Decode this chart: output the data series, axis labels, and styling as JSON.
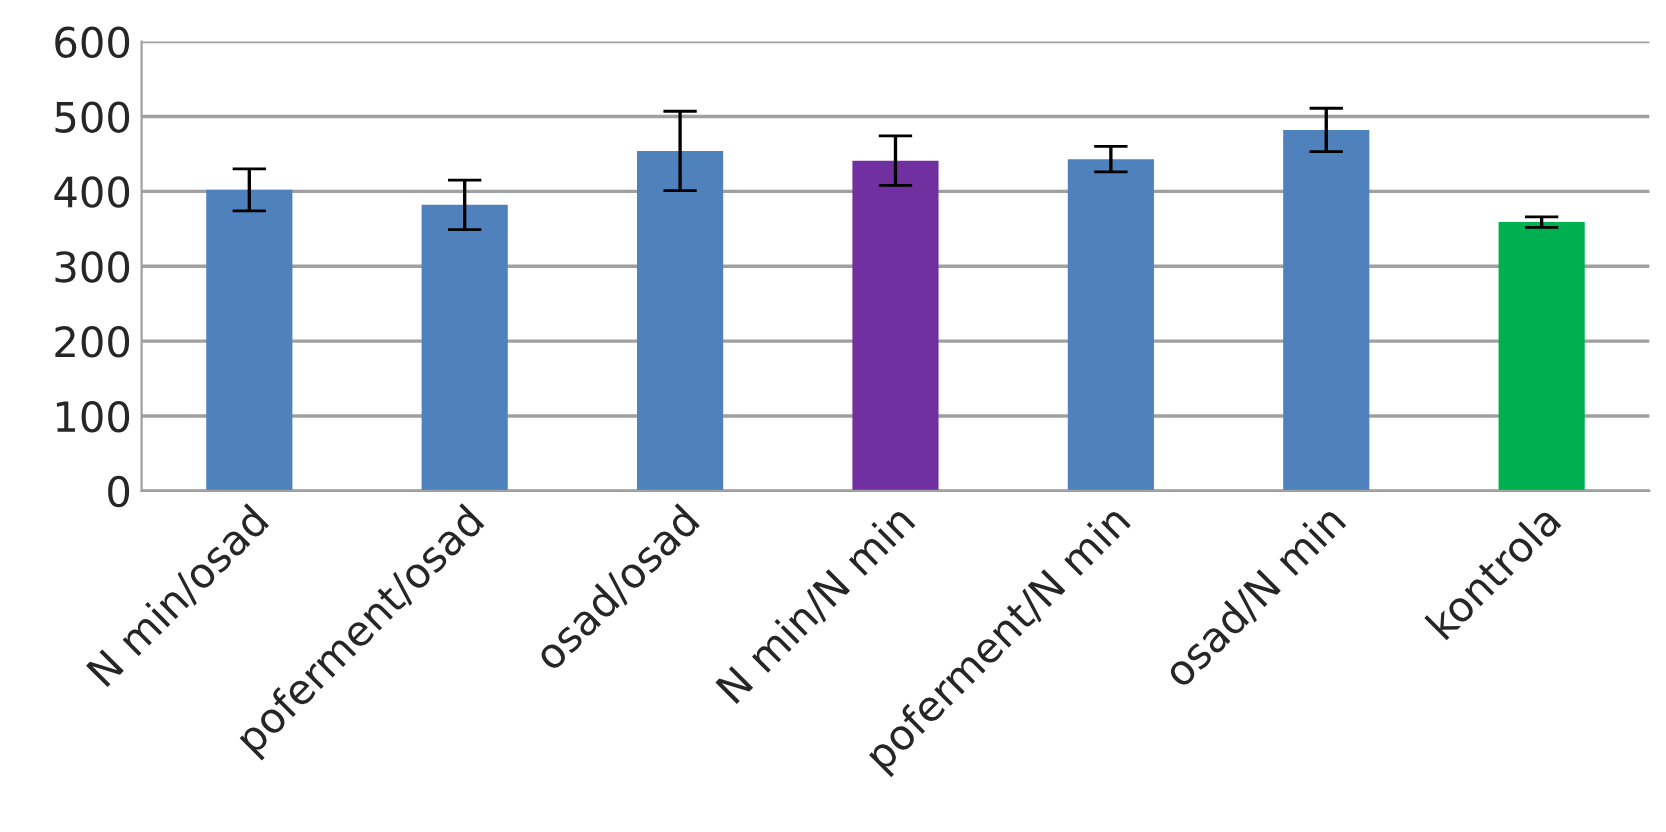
{
  "chart_data": {
    "type": "bar",
    "categories": [
      "N min/osad",
      "poferment/osad",
      "osad/osad",
      "N min/N min",
      "poferment/N min",
      "osad/N min",
      "kontrola"
    ],
    "values": [
      402,
      382,
      454,
      441,
      443,
      482,
      359
    ],
    "errors": [
      28,
      33,
      53,
      33,
      17,
      29,
      7
    ],
    "colors": [
      "#4f81bd",
      "#4f81bd",
      "#4f81bd",
      "#7030a0",
      "#4f81bd",
      "#4f81bd",
      "#00b050"
    ],
    "ylim": [
      0,
      600
    ],
    "yticks": [
      0,
      100,
      200,
      300,
      400,
      500,
      600
    ],
    "grid": "y"
  }
}
